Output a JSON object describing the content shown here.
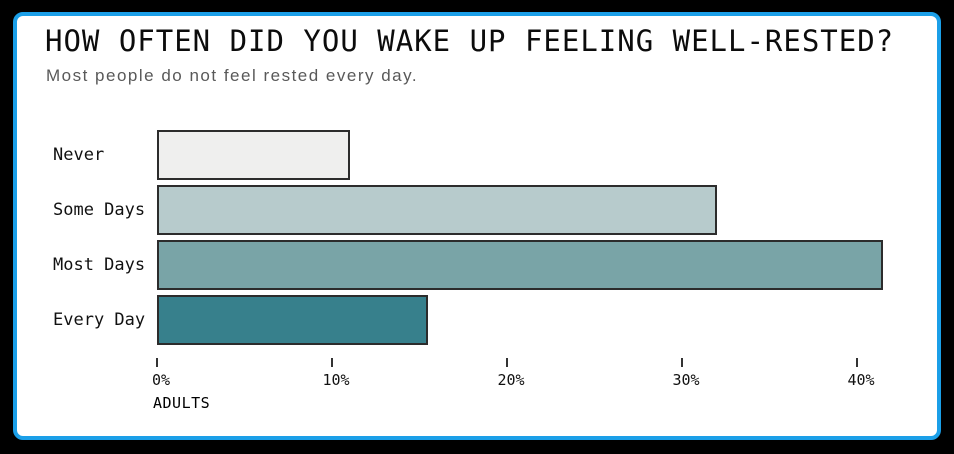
{
  "page": {
    "background_color": "#000000",
    "card_background": "#ffffff",
    "card_border_color": "#1b9fe8"
  },
  "header": {
    "title": "HOW OFTEN DID YOU WAKE UP FEELING WELL-RESTED?",
    "subtitle": "Most people do not feel rested every day."
  },
  "chart_data": {
    "type": "bar",
    "orientation": "horizontal",
    "categories": [
      "Never",
      "Some Days",
      "Most Days",
      "Every Day"
    ],
    "values": [
      11,
      32,
      41.5,
      15.5
    ],
    "unit": "%",
    "title": "HOW OFTEN DID YOU WAKE UP FEELING WELL-RESTED?",
    "subtitle": "Most people do not feel rested every day.",
    "xlabel": "ADULTS",
    "ylabel": "",
    "xlim": [
      0,
      45
    ],
    "xticks": [
      0,
      10,
      20,
      30,
      40
    ],
    "xtick_labels": [
      "0%",
      "10%",
      "20%",
      "30%",
      "40%"
    ],
    "grid": false,
    "legend": "none",
    "data_labels": false,
    "bar_colors": [
      "#efefee",
      "#b7cbcc",
      "#79a4a7",
      "#37808c"
    ],
    "bar_border_color": "#2c2c2c"
  }
}
